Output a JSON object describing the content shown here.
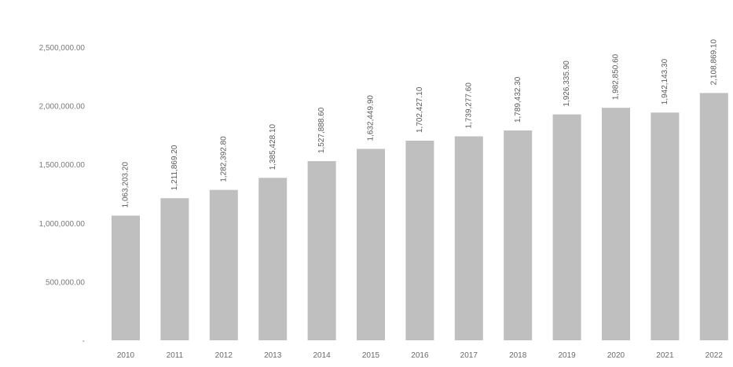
{
  "colors": {
    "bar": "#bfbfbf",
    "text": "#6a6a6a",
    "background": "#ffffff"
  },
  "chart_data": {
    "type": "bar",
    "title": "",
    "xlabel": "",
    "ylabel": "",
    "grid": false,
    "legend": "none",
    "ylim": [
      0,
      2500000
    ],
    "yticks": [
      0,
      500000,
      1000000,
      1500000,
      2000000,
      2500000
    ],
    "ytick_labels": [
      "-",
      "500,000.00",
      "1,000,000.00",
      "1,500,000.00",
      "2,000,000.00",
      "2,500,000.00"
    ],
    "categories": [
      "2010",
      "2011",
      "2012",
      "2013",
      "2014",
      "2015",
      "2016",
      "2017",
      "2018",
      "2019",
      "2020",
      "2021",
      "2022"
    ],
    "values": [
      1063203.2,
      1211869.2,
      1282392.8,
      1385428.1,
      1527888.6,
      1632449.9,
      1702427.1,
      1739277.6,
      1789432.3,
      1926335.9,
      1982850.6,
      1942143.3,
      2108869.1
    ],
    "labels": [
      "1,063,203.20",
      "1,211,869.20",
      "1,282,392.80",
      "1,385,428.10",
      "1,527,888.60",
      "1,632,449.90",
      "1,702,427.10",
      "1,739,277.60",
      "1,789,432.30",
      "1,926,335.90",
      "1,982,850.60",
      "1,942,143.30",
      "2,108,869.10"
    ]
  }
}
